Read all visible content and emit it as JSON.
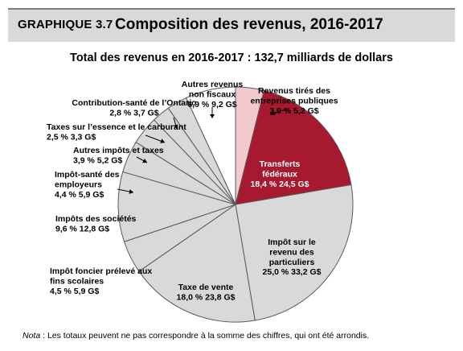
{
  "header": {
    "label": "GRAPHIQUE 3.7",
    "title": "Composition des revenus, 2016-2017"
  },
  "colors": {
    "header_bg": "#d9d9d9",
    "slice_default": "#d9d9d9",
    "slice_transferts": "#a6192e",
    "slice_revenus_entreprises": "#f2c9cd",
    "slice_autres_non_fiscaux": "#ffffff",
    "slice_border": "#595959"
  },
  "chart_data": {
    "type": "pie",
    "title": "Total des revenus en 2016-2017 : 132,7 milliards de dollars",
    "total": 132.7,
    "slices": [
      {
        "name": "Revenus tirés des entreprises publiques",
        "percent": 3.9,
        "value": 5.2,
        "color": "#f2c9cd",
        "lines": [
          "Revenus tirés des",
          "entreprises publiques",
          "3,9 %   5,2 G$"
        ]
      },
      {
        "name": "Transferts fédéraux",
        "percent": 18.4,
        "value": 24.5,
        "color": "#a6192e",
        "lines": [
          "Transferts",
          "fédéraux",
          "18,4 %   24,5 G$"
        ]
      },
      {
        "name": "Impôt sur le revenu des particuliers",
        "percent": 25.0,
        "value": 33.2,
        "color": "#d9d9d9",
        "lines": [
          "Impôt sur le",
          "revenu des",
          "particuliers",
          "25,0 %   33,2 G$"
        ]
      },
      {
        "name": "Taxe de vente",
        "percent": 18.0,
        "value": 23.8,
        "color": "#d9d9d9",
        "lines": [
          "Taxe de vente",
          "18,0 %   23,8 G$"
        ]
      },
      {
        "name": "Impôt foncier prélevé aux fins scolaires",
        "percent": 4.5,
        "value": 5.9,
        "color": "#d9d9d9",
        "lines": [
          "Impôt foncier prélevé aux",
          "fins scolaires",
          "4,5 %   5,9 G$"
        ]
      },
      {
        "name": "Impôts des sociétés",
        "percent": 9.6,
        "value": 12.8,
        "color": "#d9d9d9",
        "lines": [
          "Impôts des sociétés",
          "9,6 %   12,8 G$"
        ]
      },
      {
        "name": "Impôt-santé des employeurs",
        "percent": 4.4,
        "value": 5.9,
        "color": "#d9d9d9",
        "lines": [
          "Impôt-santé des",
          "employeurs",
          "4,4 %   5,9 G$"
        ]
      },
      {
        "name": "Autres impôts et taxes",
        "percent": 3.9,
        "value": 5.2,
        "color": "#d9d9d9",
        "lines": [
          "Autres impôts et taxes",
          "3,9 %   5,2 G$"
        ]
      },
      {
        "name": "Taxes sur l’essence et le carburant",
        "percent": 2.5,
        "value": 3.3,
        "color": "#d9d9d9",
        "lines": [
          "Taxes sur l’essence et le carburant",
          "2,5 %   3,3 G$"
        ]
      },
      {
        "name": "Contribution-santé de l’Ontario",
        "percent": 2.8,
        "value": 3.7,
        "color": "#d9d9d9",
        "lines": [
          "Contribution-santé de l’Ontario",
          "2,8 %   3,7 G$"
        ]
      },
      {
        "name": "Autres revenus non fiscaux",
        "percent": 6.9,
        "value": 9.2,
        "color": "#ffffff",
        "lines": [
          "Autres revenus",
          "non fiscaux",
          "6,9 %   9,2 G$"
        ]
      }
    ]
  },
  "note": {
    "prefix": "Nota",
    "text": " : Les totaux peuvent ne pas correspondre à la somme des chiffres, qui ont été arrondis."
  }
}
